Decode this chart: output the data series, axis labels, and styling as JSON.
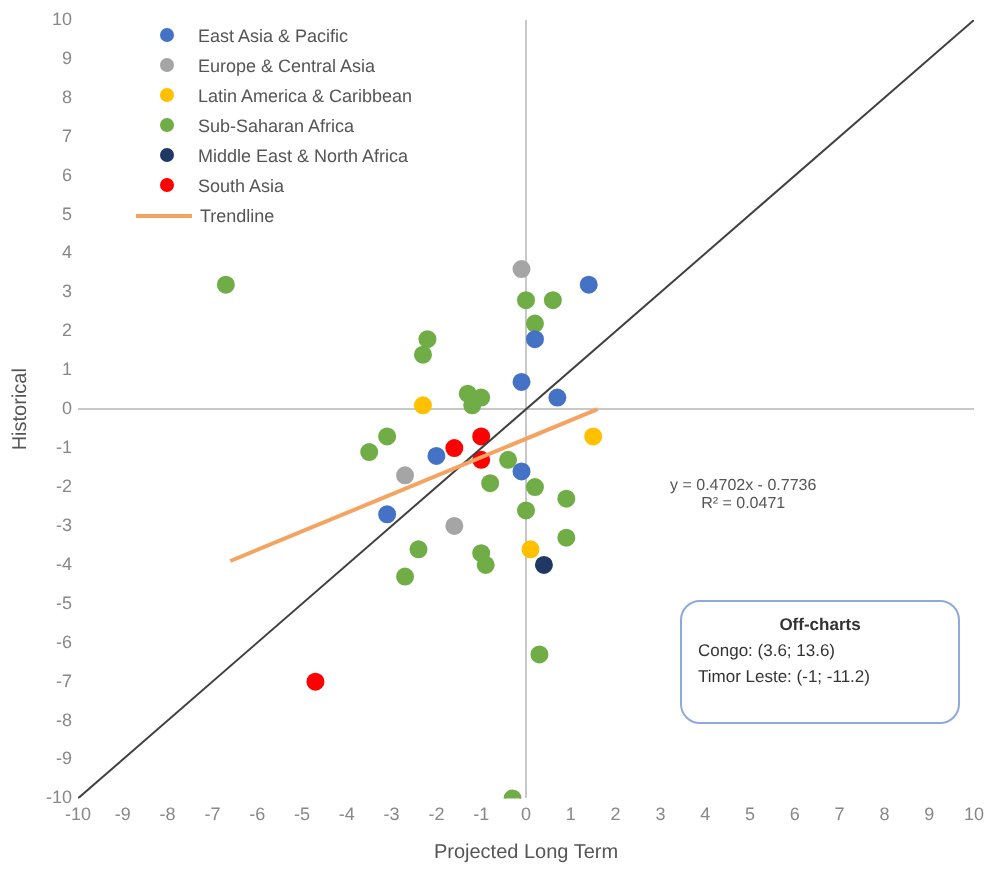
{
  "chart_data": {
    "type": "scatter",
    "xlabel": "Projected Long Term",
    "ylabel": "Historical",
    "xlim": [
      -10,
      10
    ],
    "ylim": [
      -10,
      10
    ],
    "xticks": [
      -10,
      -9,
      -8,
      -7,
      -6,
      -5,
      -4,
      -3,
      -2,
      -1,
      0,
      1,
      2,
      3,
      4,
      5,
      6,
      7,
      8,
      9,
      10
    ],
    "yticks": [
      -10,
      -9,
      -8,
      -7,
      -6,
      -5,
      -4,
      -3,
      -2,
      -1,
      0,
      1,
      2,
      3,
      4,
      5,
      6,
      7,
      8,
      9,
      10
    ],
    "legend": "top left",
    "marker": "circle",
    "series": [
      {
        "name": "East Asia & Pacific",
        "color": "#4472c4",
        "x": [
          1.4,
          0.2,
          -0.1,
          0.7,
          -2.0,
          -0.1,
          -3.1
        ],
        "values": [
          3.2,
          1.8,
          0.7,
          0.3,
          -1.2,
          -1.6,
          -2.7
        ]
      },
      {
        "name": "Europe & Central Asia",
        "color": "#a5a5a5",
        "x": [
          -0.1,
          -2.7,
          -1.6
        ],
        "values": [
          3.6,
          -1.7,
          -3.0
        ]
      },
      {
        "name": "Latin America & Caribbean",
        "color": "#ffc000",
        "x": [
          -2.3,
          1.5,
          0.1
        ],
        "values": [
          0.1,
          -0.7,
          -3.6
        ]
      },
      {
        "name": "Sub-Saharan Africa",
        "color": "#70ad47",
        "x": [
          -6.7,
          -2.2,
          -2.3,
          0.0,
          0.6,
          0.2,
          -1.3,
          -1.0,
          -1.2,
          -3.1,
          -3.5,
          -0.4,
          -0.8,
          0.2,
          0.0,
          0.9,
          0.9,
          -2.4,
          -1.0,
          -0.9,
          -2.7,
          0.3,
          -0.3
        ],
        "values": [
          3.2,
          1.8,
          1.4,
          2.8,
          2.8,
          2.2,
          0.4,
          0.3,
          0.1,
          -0.7,
          -1.1,
          -1.3,
          -1.9,
          -2.0,
          -2.6,
          -2.3,
          -3.3,
          -3.6,
          -3.7,
          -4.0,
          -4.3,
          -6.3,
          -10.0
        ]
      },
      {
        "name": "Middle East & North Africa",
        "color": "#203864",
        "x": [
          0.4
        ],
        "values": [
          -4.0
        ]
      },
      {
        "name": "South Asia",
        "color": "#ff0000",
        "x": [
          -1.0,
          -1.6,
          -1.0,
          -4.7
        ],
        "values": [
          -0.7,
          -1.0,
          -1.3,
          -7.0
        ]
      },
      {
        "name": "Trendline",
        "type": "line",
        "marker": "none",
        "color": "#f4a460",
        "x": [
          -6.6,
          1.6
        ],
        "values": [
          -3.9,
          0.0
        ]
      },
      {
        "type": "line",
        "marker": "none",
        "color": "#404040",
        "x": [
          -10,
          10
        ],
        "values": [
          -10,
          10
        ]
      }
    ],
    "annotations": [
      "y = 0.4702x - 0.7736",
      "R² = 0.0471",
      "Off-charts",
      "Congo: (3.6; 13.6)",
      "Timor Leste: (-1; -11.2)"
    ]
  }
}
